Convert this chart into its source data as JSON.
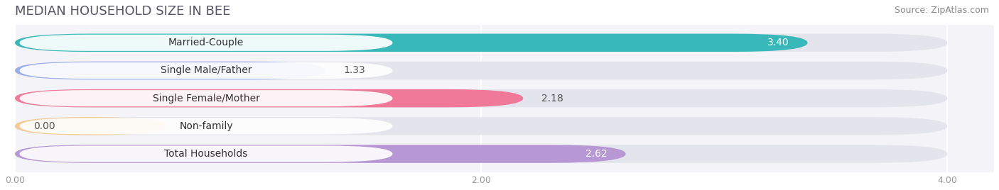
{
  "title": "MEDIAN HOUSEHOLD SIZE IN BEE",
  "source": "Source: ZipAtlas.com",
  "categories": [
    "Married-Couple",
    "Single Male/Father",
    "Single Female/Mother",
    "Non-family",
    "Total Households"
  ],
  "values": [
    3.4,
    1.33,
    2.18,
    0.0,
    2.62
  ],
  "bar_colors": [
    "#38b8b8",
    "#9aaee8",
    "#f07898",
    "#f5c990",
    "#b898d4"
  ],
  "background_color": "#f4f4f8",
  "bar_bg_color": "#e4e4ec",
  "fig_bg_color": "#ffffff",
  "xlim": [
    0,
    4.2
  ],
  "xticks": [
    0.0,
    2.0,
    4.0
  ],
  "xtick_labels": [
    "0.00",
    "2.00",
    "4.00"
  ],
  "value_inside": [
    true,
    false,
    false,
    false,
    true
  ],
  "value_colors_inside": [
    "#ffffff",
    "#555555",
    "#555555",
    "#555555",
    "#ffffff"
  ],
  "title_fontsize": 13,
  "source_fontsize": 9,
  "label_fontsize": 10,
  "value_fontsize": 10
}
